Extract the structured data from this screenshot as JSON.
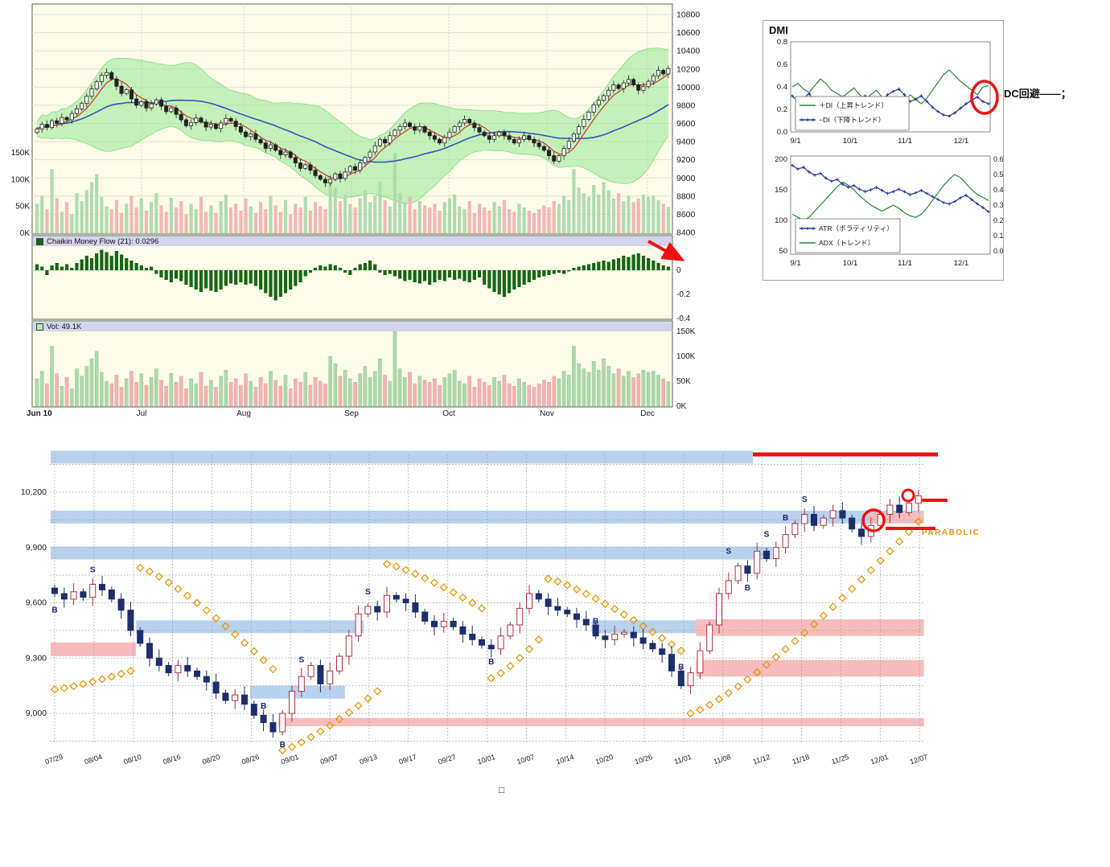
{
  "colors": {
    "chart_bg": "#fcfce8",
    "pane_border": "#566656",
    "grid_pale": "#e4e4cc",
    "boll_fill": "#8ce68c",
    "ma_fast": "#cc3333",
    "ma_slow": "#3355bb",
    "candle_stroke": "#222222",
    "vol_up": "#aed9ae",
    "vol_down": "#f2b3b3",
    "chaikin_bar": "#166616",
    "header_strip": "#d4d4ec",
    "annotation_red": "#ee1111",
    "sar_orange": "#e8960a",
    "zone_blue": "#b8d2ee",
    "zone_pink": "#f6bcbc",
    "bottom_up_stroke": "#b03040",
    "bottom_down_fill": "#1c2f6b",
    "signal_color": "#14246e",
    "di_plus_green": "#228833",
    "di_minus_blue": "#223399"
  },
  "annotations": {
    "dc_note": "DC回避——；",
    "box_char": "□"
  },
  "chart_data": [
    {
      "id": "price_main",
      "type": "candlestick",
      "title": "",
      "x_labels": [
        "Jun 10",
        "Jul",
        "Aug",
        "Sep",
        "Oct",
        "Nov",
        "Dec"
      ],
      "ylim": [
        8400,
        10800
      ],
      "y_ticks": [
        10800,
        10600,
        10400,
        10200,
        10000,
        9800,
        9600,
        9400,
        9200,
        9000,
        8800,
        8600,
        8400
      ],
      "volume_axis_ticks": [
        "150K",
        "100K",
        "50K",
        "0K"
      ],
      "overlays": [
        "bollinger(20,2)",
        "sma5",
        "sma25",
        "volume"
      ],
      "closes": [
        9540,
        9590,
        9555,
        9630,
        9600,
        9665,
        9640,
        9710,
        9760,
        9820,
        9900,
        9980,
        10060,
        10130,
        10160,
        10090,
        10010,
        9930,
        9970,
        9870,
        9800,
        9840,
        9770,
        9815,
        9860,
        9790,
        9730,
        9770,
        9700,
        9640,
        9575,
        9610,
        9660,
        9615,
        9560,
        9590,
        9545,
        9605,
        9655,
        9625,
        9565,
        9505,
        9455,
        9485,
        9425,
        9385,
        9325,
        9365,
        9305,
        9255,
        9285,
        9225,
        9165,
        9105,
        9145,
        9085,
        9025,
        8985,
        8945,
        8985,
        9045,
        8995,
        9065,
        9125,
        9085,
        9165,
        9225,
        9285,
        9355,
        9425,
        9385,
        9465,
        9525,
        9565,
        9605,
        9565,
        9525,
        9565,
        9505,
        9465,
        9425,
        9385,
        9445,
        9505,
        9565,
        9605,
        9645,
        9605,
        9555,
        9505,
        9465,
        9425,
        9465,
        9505,
        9465,
        9425,
        9385,
        9425,
        9465,
        9425,
        9385,
        9345,
        9305,
        9245,
        9185,
        9245,
        9325,
        9405,
        9485,
        9565,
        9645,
        9725,
        9805,
        9855,
        9905,
        9965,
        10025,
        9985,
        10045,
        10085,
        10025,
        9965,
        10005,
        10065,
        10125,
        10185,
        10145,
        10205
      ],
      "volume_k": [
        55,
        70,
        45,
        120,
        65,
        40,
        58,
        35,
        75,
        60,
        80,
        95,
        110,
        68,
        50,
        45,
        62,
        38,
        55,
        70,
        48,
        65,
        42,
        58,
        75,
        52,
        40,
        66,
        48,
        60,
        35,
        55,
        45,
        68,
        40,
        52,
        38,
        60,
        72,
        48,
        55,
        42,
        65,
        50,
        38,
        58,
        45,
        70,
        52,
        40,
        62,
        35,
        55,
        48,
        68,
        42,
        58,
        50,
        45,
        100,
        85,
        60,
        72,
        55,
        48,
        65,
        80,
        58,
        70,
        95,
        62,
        50,
        150,
        75,
        58,
        68,
        45,
        60,
        52,
        48,
        55,
        42,
        58,
        65,
        72,
        50,
        45,
        60,
        38,
        55,
        48,
        42,
        58,
        50,
        62,
        45,
        40,
        55,
        48,
        42,
        38,
        45,
        52,
        48,
        60,
        55,
        70,
        62,
        120,
        85,
        75,
        68,
        90,
        72,
        95,
        80,
        65,
        75,
        60,
        70,
        58,
        65,
        72,
        68,
        70,
        62,
        55,
        49
      ]
    },
    {
      "id": "chaikin",
      "type": "bar",
      "label": "Chaikin Money Flow (21): 0.0296",
      "y_ticks": [
        0,
        -0.2,
        -0.4
      ],
      "values": [
        0.05,
        0.03,
        -0.04,
        0.04,
        0.06,
        0.03,
        0.05,
        0.02,
        0.06,
        0.09,
        0.12,
        0.1,
        0.14,
        0.17,
        0.15,
        0.12,
        0.16,
        0.13,
        0.1,
        0.08,
        0.06,
        0.04,
        0.02,
        0.03,
        -0.03,
        -0.06,
        -0.08,
        -0.1,
        -0.07,
        -0.09,
        -0.12,
        -0.14,
        -0.16,
        -0.18,
        -0.15,
        -0.17,
        -0.18,
        -0.16,
        -0.13,
        -0.11,
        -0.12,
        -0.1,
        -0.12,
        -0.11,
        -0.13,
        -0.16,
        -0.19,
        -0.22,
        -0.25,
        -0.22,
        -0.19,
        -0.16,
        -0.13,
        -0.1,
        -0.05,
        -0.02,
        0.02,
        0.04,
        0.03,
        0.05,
        0.04,
        0.02,
        -0.02,
        -0.04,
        0.02,
        0.05,
        0.06,
        0.08,
        0.05,
        -0.02,
        -0.04,
        -0.03,
        -0.05,
        -0.07,
        -0.09,
        -0.08,
        -0.1,
        -0.11,
        -0.09,
        -0.12,
        -0.1,
        -0.08,
        -0.09,
        -0.06,
        -0.08,
        -0.07,
        -0.09,
        -0.1,
        -0.08,
        -0.06,
        -0.12,
        -0.15,
        -0.18,
        -0.2,
        -0.22,
        -0.19,
        -0.16,
        -0.14,
        -0.12,
        -0.1,
        -0.08,
        -0.06,
        -0.05,
        -0.04,
        -0.03,
        -0.02,
        -0.03,
        -0.01,
        0.02,
        0.03,
        0.04,
        0.05,
        0.06,
        0.07,
        0.08,
        0.07,
        0.09,
        0.1,
        0.12,
        0.11,
        0.13,
        0.14,
        0.12,
        0.1,
        0.08,
        0.06,
        0.04,
        0.03
      ]
    },
    {
      "id": "volume_pane",
      "type": "bar",
      "label": "Vol: 49.1K",
      "y_ticks": [
        "150K",
        "100K",
        "50K",
        "0K"
      ],
      "values_source": "price_main.volume_k"
    },
    {
      "id": "dmi_di",
      "type": "line",
      "title": "DMI",
      "x_labels": [
        "9/1",
        "10/1",
        "11/1",
        "12/1"
      ],
      "ylim": [
        0,
        0.8
      ],
      "y_ticks": [
        0.8,
        0.6,
        0.4,
        0.2,
        0.0
      ],
      "legend_position": "bottom-left",
      "series": [
        {
          "name": "＋DI（上昇トレンド）",
          "color": "green",
          "values": [
            0.4,
            0.43,
            0.38,
            0.35,
            0.41,
            0.47,
            0.43,
            0.37,
            0.34,
            0.31,
            0.35,
            0.39,
            0.33,
            0.29,
            0.33,
            0.37,
            0.31,
            0.27,
            0.24,
            0.21,
            0.27,
            0.33,
            0.29,
            0.25,
            0.3,
            0.37,
            0.44,
            0.51,
            0.55,
            0.5,
            0.45,
            0.41,
            0.37,
            0.33,
            0.4,
            0.41
          ]
        },
        {
          "name": "−DI（下降トレンド）",
          "color": "blue",
          "marker": "+",
          "values": [
            0.32,
            0.27,
            0.3,
            0.34,
            0.27,
            0.22,
            0.25,
            0.3,
            0.27,
            0.31,
            0.29,
            0.25,
            0.28,
            0.32,
            0.29,
            0.25,
            0.28,
            0.33,
            0.36,
            0.38,
            0.33,
            0.27,
            0.29,
            0.32,
            0.27,
            0.22,
            0.18,
            0.15,
            0.14,
            0.17,
            0.21,
            0.25,
            0.28,
            0.31,
            0.27,
            0.25
          ]
        }
      ]
    },
    {
      "id": "dmi_atr",
      "type": "line",
      "x_labels": [
        "9/1",
        "10/1",
        "11/1",
        "12/1"
      ],
      "ylim_left": [
        50,
        200
      ],
      "y_ticks_left": [
        200,
        150,
        100,
        50
      ],
      "ylim_right": [
        0,
        0.6
      ],
      "y_ticks_right": [
        0.6,
        0.5,
        0.4,
        0.3,
        0.2,
        0.1,
        0.0
      ],
      "legend_position": "bottom-left",
      "series": [
        {
          "name": "ATR（ボラティリティ）",
          "axis": "left",
          "color": "blue",
          "marker": "+",
          "values": [
            190,
            184,
            187,
            179,
            174,
            177,
            169,
            164,
            167,
            159,
            154,
            157,
            151,
            147,
            150,
            154,
            149,
            144,
            147,
            151,
            147,
            142,
            145,
            149,
            144,
            139,
            134,
            129,
            127,
            131,
            137,
            141,
            134,
            127,
            121,
            114
          ]
        },
        {
          "name": "ADX（トレンド）",
          "axis": "right",
          "color": "green",
          "values": [
            0.24,
            0.22,
            0.2,
            0.22,
            0.26,
            0.3,
            0.34,
            0.38,
            0.42,
            0.45,
            0.43,
            0.4,
            0.36,
            0.33,
            0.3,
            0.28,
            0.26,
            0.28,
            0.3,
            0.28,
            0.25,
            0.23,
            0.22,
            0.24,
            0.28,
            0.33,
            0.38,
            0.43,
            0.47,
            0.5,
            0.48,
            0.44,
            0.4,
            0.37,
            0.35,
            0.33
          ]
        }
      ]
    },
    {
      "id": "daily_detail",
      "type": "candlestick",
      "parabolic_label": "PARABOLIC",
      "x_labels": [
        "07/29",
        "08/04",
        "08/10",
        "08/16",
        "08/20",
        "08/26",
        "09/01",
        "09/07",
        "09/13",
        "09/17",
        "09/27",
        "10/01",
        "10/07",
        "10/14",
        "10/20",
        "10/26",
        "11/01",
        "11/08",
        "11/12",
        "11/18",
        "11/25",
        "12/01",
        "12/07"
      ],
      "y_ticks": [
        "10,200",
        "9,900",
        "9,600",
        "9,300",
        "9,000"
      ],
      "y_tick_values": [
        10200,
        9900,
        9600,
        9300,
        9000
      ],
      "ylim": [
        8880,
        10430
      ],
      "grid_step": 150,
      "closes": [
        9650,
        9620,
        9660,
        9630,
        9700,
        9670,
        9620,
        9560,
        9450,
        9380,
        9300,
        9260,
        9220,
        9260,
        9230,
        9200,
        9170,
        9110,
        9070,
        9100,
        9050,
        8990,
        8950,
        8900,
        9000,
        9120,
        9200,
        9260,
        9160,
        9230,
        9310,
        9420,
        9540,
        9580,
        9550,
        9640,
        9620,
        9600,
        9550,
        9500,
        9470,
        9500,
        9470,
        9430,
        9400,
        9370,
        9350,
        9420,
        9480,
        9570,
        9650,
        9620,
        9580,
        9560,
        9540,
        9510,
        9480,
        9420,
        9400,
        9430,
        9440,
        9410,
        9380,
        9350,
        9320,
        9230,
        9150,
        9220,
        9340,
        9480,
        9650,
        9720,
        9800,
        9760,
        9880,
        9840,
        9900,
        9970,
        10030,
        10080,
        10020,
        10060,
        10100,
        10060,
        10000,
        9960,
        10020,
        10080,
        10130,
        10090,
        10140,
        10180
      ],
      "zones": [
        {
          "c": "blue",
          "i0": 0,
          "i1": 74,
          "p0": 10355,
          "p1": 10425
        },
        {
          "c": "blue",
          "i0": 0,
          "i1": 92,
          "p0": 10030,
          "p1": 10100
        },
        {
          "c": "pink",
          "i0": 86,
          "i1": 92,
          "p0": 10030,
          "p1": 10090
        },
        {
          "c": "blue",
          "i0": 0,
          "i1": 76,
          "p0": 9835,
          "p1": 9905
        },
        {
          "c": "blue",
          "i0": 9,
          "i1": 33,
          "p0": 9435,
          "p1": 9505
        },
        {
          "c": "blue",
          "i0": 57,
          "i1": 68,
          "p0": 9435,
          "p1": 9505
        },
        {
          "c": "pink",
          "i0": 0,
          "i1": 9,
          "p0": 9310,
          "p1": 9385
        },
        {
          "c": "pink",
          "i0": 68,
          "i1": 92,
          "p0": 9420,
          "p1": 9510
        },
        {
          "c": "pink",
          "i0": 68,
          "i1": 92,
          "p0": 9200,
          "p1": 9290
        },
        {
          "c": "blue",
          "i0": 21,
          "i1": 31,
          "p0": 9080,
          "p1": 9150
        },
        {
          "c": "pink",
          "i0": 24,
          "i1": 92,
          "p0": 8930,
          "p1": 8975
        }
      ],
      "sar_segments": [
        {
          "i0": 0,
          "i1": 8,
          "p0": 9130,
          "p1": 9230,
          "side": -1
        },
        {
          "i0": 9,
          "i1": 23,
          "p0": 9790,
          "p1": 9240,
          "side": 1
        },
        {
          "i0": 24,
          "i1": 34,
          "p0": 8800,
          "p1": 9120,
          "side": -1
        },
        {
          "i0": 35,
          "i1": 45,
          "p0": 9810,
          "p1": 9570,
          "side": 1
        },
        {
          "i0": 46,
          "i1": 51,
          "p0": 9190,
          "p1": 9400,
          "side": -1
        },
        {
          "i0": 52,
          "i1": 66,
          "p0": 9730,
          "p1": 9340,
          "side": 1
        },
        {
          "i0": 67,
          "i1": 91,
          "p0": 9000,
          "p1": 10040,
          "side": -1
        }
      ],
      "signals": [
        {
          "i": 0,
          "t": "B",
          "p": 9560
        },
        {
          "i": 4,
          "t": "S",
          "p": 9780
        },
        {
          "i": 22,
          "t": "B",
          "p": 9040
        },
        {
          "i": 24,
          "t": "B",
          "p": 8830
        },
        {
          "i": 26,
          "t": "S",
          "p": 9290
        },
        {
          "i": 33,
          "t": "S",
          "p": 9660
        },
        {
          "i": 46,
          "t": "B",
          "p": 9280
        },
        {
          "i": 57,
          "t": "B",
          "p": 9500
        },
        {
          "i": 66,
          "t": "B",
          "p": 9250
        },
        {
          "i": 71,
          "t": "S",
          "p": 9880
        },
        {
          "i": 73,
          "t": "B",
          "p": 9680
        },
        {
          "i": 75,
          "t": "S",
          "p": 9970
        },
        {
          "i": 77,
          "t": "B",
          "p": 10060
        },
        {
          "i": 79,
          "t": "S",
          "p": 10160
        }
      ]
    }
  ]
}
